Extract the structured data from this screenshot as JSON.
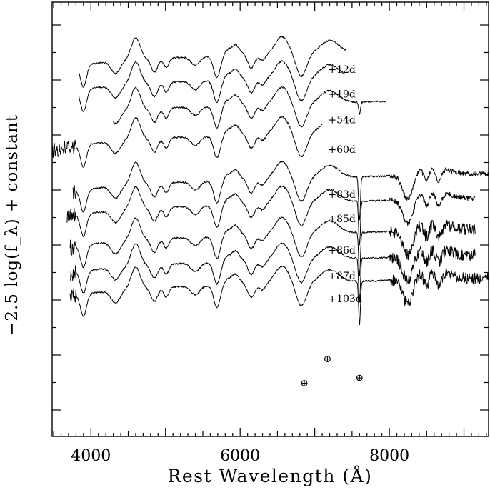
{
  "chart_data": {
    "type": "line",
    "xlabel": "Rest Wavelength (Å)",
    "ylabel": "−2.5 log(f_λ) + constant",
    "xlim": [
      3480,
      9330
    ],
    "x_ticks": [
      4000,
      6000,
      8000
    ],
    "y_ticks_visible": true,
    "grid": false,
    "telluric_marker": "⊕",
    "telluric_features_A": [
      6860,
      7170,
      7600
    ],
    "series": [
      {
        "name": "+12d",
        "x_range": [
          3840,
          7420
        ],
        "label_x": 7180,
        "label_y_mag": 1.95
      },
      {
        "name": "+19d",
        "x_range": [
          3840,
          7400
        ],
        "label_x": 7180,
        "label_y_mag": 2.85
      },
      {
        "name": "+54d",
        "x_range": [
          4300,
          7950
        ],
        "label_x": 7180,
        "label_y_mag": 3.8
      },
      {
        "name": "+60d",
        "x_range": [
          3480,
          7100
        ],
        "label_x": 7180,
        "label_y_mag": 4.9
      },
      {
        "name": "+83d",
        "x_range": [
          3760,
          9330
        ],
        "label_x": 7180,
        "label_y_mag": 6.55
      },
      {
        "name": "+85d",
        "x_range": [
          3680,
          9150
        ],
        "label_x": 7180,
        "label_y_mag": 7.45
      },
      {
        "name": "+86d",
        "x_range": [
          3720,
          9150
        ],
        "label_x": 7180,
        "label_y_mag": 8.6
      },
      {
        "name": "+87d",
        "x_range": [
          3720,
          9150
        ],
        "label_x": 7180,
        "label_y_mag": 9.55
      },
      {
        "name": "+103d",
        "x_range": [
          3720,
          9330
        ],
        "label_x": 7180,
        "label_y_mag": 10.4
      }
    ]
  }
}
